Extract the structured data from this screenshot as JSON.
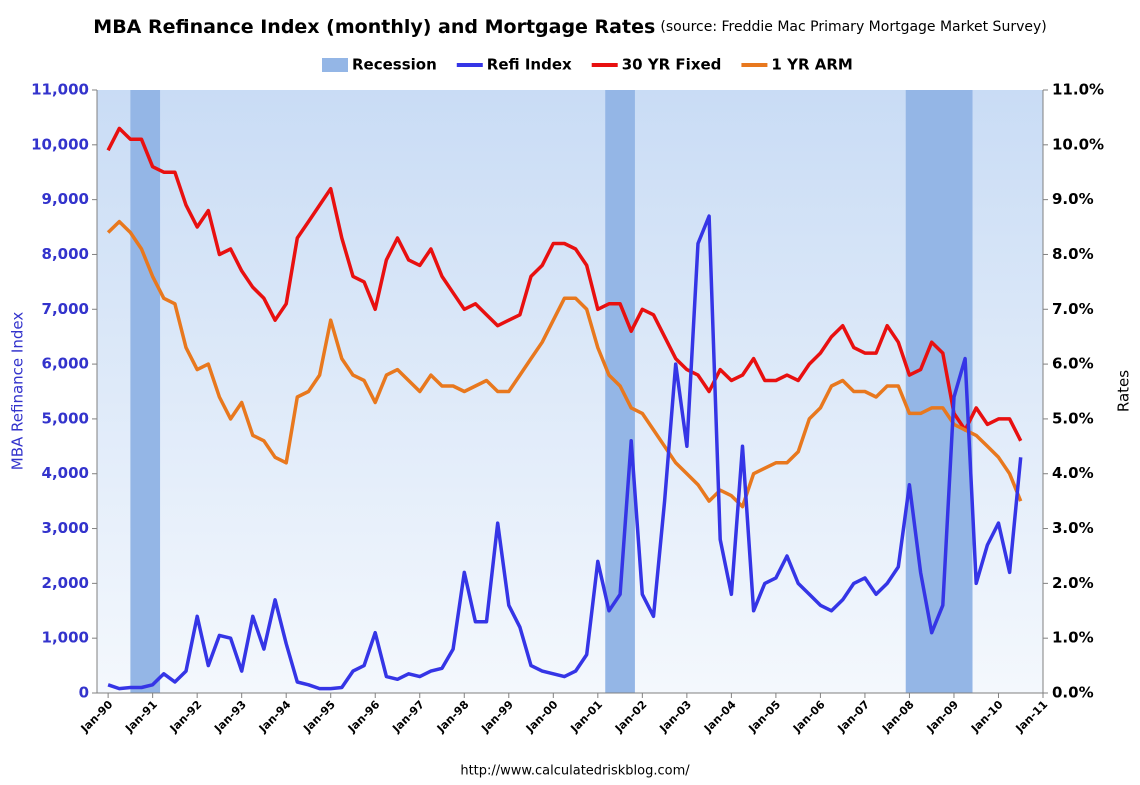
{
  "chart_data": {
    "type": "line",
    "title": "MBA Refinance Index (monthly) and Mortgage Rates",
    "source": "(source: Freddie Mac Primary Mortgage Market Survey)",
    "ylabel": "MBA Refinance Index",
    "y2label": "Rates",
    "footer": "http://www.calculatedriskblog.com/",
    "recessions": {
      "name": "Recession",
      "color": "#94b6e6",
      "periods": [
        [
          "1990-07",
          "1991-03"
        ],
        [
          "2001-03",
          "2001-11"
        ],
        [
          "2007-12",
          "2009-06"
        ]
      ]
    },
    "x": [
      "1990-01",
      "1990-04",
      "1990-07",
      "1990-10",
      "1991-01",
      "1991-04",
      "1991-07",
      "1991-10",
      "1992-01",
      "1992-04",
      "1992-07",
      "1992-10",
      "1993-01",
      "1993-04",
      "1993-07",
      "1993-10",
      "1994-01",
      "1994-04",
      "1994-07",
      "1994-10",
      "1995-01",
      "1995-04",
      "1995-07",
      "1995-10",
      "1996-01",
      "1996-04",
      "1996-07",
      "1996-10",
      "1997-01",
      "1997-04",
      "1997-07",
      "1997-10",
      "1998-01",
      "1998-04",
      "1998-07",
      "1998-10",
      "1999-01",
      "1999-04",
      "1999-07",
      "1999-10",
      "2000-01",
      "2000-04",
      "2000-07",
      "2000-10",
      "2001-01",
      "2001-04",
      "2001-07",
      "2001-10",
      "2002-01",
      "2002-04",
      "2002-07",
      "2002-10",
      "2003-01",
      "2003-04",
      "2003-07",
      "2003-10",
      "2004-01",
      "2004-04",
      "2004-07",
      "2004-10",
      "2005-01",
      "2005-04",
      "2005-07",
      "2005-10",
      "2006-01",
      "2006-04",
      "2006-07",
      "2006-10",
      "2007-01",
      "2007-04",
      "2007-07",
      "2007-10",
      "2008-01",
      "2008-04",
      "2008-07",
      "2008-10",
      "2009-01",
      "2009-04",
      "2009-07",
      "2009-10",
      "2010-01",
      "2010-04",
      "2010-07"
    ],
    "series": [
      {
        "name": "Refi Index",
        "color": "#3535e6",
        "axis": "y",
        "values": [
          150,
          80,
          100,
          100,
          150,
          350,
          200,
          400,
          1400,
          500,
          1050,
          1000,
          400,
          1400,
          800,
          1700,
          900,
          200,
          150,
          80,
          80,
          100,
          400,
          500,
          1100,
          300,
          250,
          350,
          300,
          400,
          450,
          800,
          2200,
          1300,
          1300,
          3100,
          1600,
          1200,
          500,
          400,
          350,
          300,
          400,
          700,
          2400,
          1500,
          1800,
          4600,
          1800,
          1400,
          3500,
          6000,
          4500,
          8200,
          8700,
          2800,
          1800,
          4500,
          1500,
          2000,
          2100,
          2500,
          2000,
          1800,
          1600,
          1500,
          1700,
          2000,
          2100,
          1800,
          2000,
          2300,
          3800,
          2200,
          1100,
          1600,
          5400,
          6100,
          2000,
          2700,
          3100,
          2200,
          4300
        ]
      },
      {
        "name": "30 YR Fixed",
        "color": "#e81010",
        "axis": "y2",
        "values": [
          9.9,
          10.3,
          10.1,
          10.1,
          9.6,
          9.5,
          9.5,
          8.9,
          8.5,
          8.8,
          8.0,
          8.1,
          7.7,
          7.4,
          7.2,
          6.8,
          7.1,
          8.3,
          8.6,
          8.9,
          9.2,
          8.3,
          7.6,
          7.5,
          7.0,
          7.9,
          8.3,
          7.9,
          7.8,
          8.1,
          7.6,
          7.3,
          7.0,
          7.1,
          6.9,
          6.7,
          6.8,
          6.9,
          7.6,
          7.8,
          8.2,
          8.2,
          8.1,
          7.8,
          7.0,
          7.1,
          7.1,
          6.6,
          7.0,
          6.9,
          6.5,
          6.1,
          5.9,
          5.8,
          5.5,
          5.9,
          5.7,
          5.8,
          6.1,
          5.7,
          5.7,
          5.8,
          5.7,
          6.0,
          6.2,
          6.5,
          6.7,
          6.3,
          6.2,
          6.2,
          6.7,
          6.4,
          5.8,
          5.9,
          6.4,
          6.2,
          5.1,
          4.8,
          5.2,
          4.9,
          5.0,
          5.0,
          4.6
        ]
      },
      {
        "name": "1 YR ARM",
        "color": "#e8781e",
        "axis": "y2",
        "values": [
          8.4,
          8.6,
          8.4,
          8.1,
          7.6,
          7.2,
          7.1,
          6.3,
          5.9,
          6.0,
          5.4,
          5.0,
          5.3,
          4.7,
          4.6,
          4.3,
          4.2,
          5.4,
          5.5,
          5.8,
          6.8,
          6.1,
          5.8,
          5.7,
          5.3,
          5.8,
          5.9,
          5.7,
          5.5,
          5.8,
          5.6,
          5.6,
          5.5,
          5.6,
          5.7,
          5.5,
          5.5,
          5.8,
          6.1,
          6.4,
          6.8,
          7.2,
          7.2,
          7.0,
          6.3,
          5.8,
          5.6,
          5.2,
          5.1,
          4.8,
          4.5,
          4.2,
          4.0,
          3.8,
          3.5,
          3.7,
          3.6,
          3.4,
          4.0,
          4.1,
          4.2,
          4.2,
          4.4,
          5.0,
          5.2,
          5.6,
          5.7,
          5.5,
          5.5,
          5.4,
          5.6,
          5.6,
          5.1,
          5.1,
          5.2,
          5.2,
          4.9,
          4.8,
          4.7,
          4.5,
          4.3,
          4.0,
          3.5
        ]
      }
    ],
    "xlim": [
      "1989-10",
      "2011-01"
    ],
    "xticks": [
      {
        "value": "1990-01",
        "label": "Jan-90"
      },
      {
        "value": "1991-01",
        "label": "Jan-91"
      },
      {
        "value": "1992-01",
        "label": "Jan-92"
      },
      {
        "value": "1993-01",
        "label": "Jan-93"
      },
      {
        "value": "1994-01",
        "label": "Jan-94"
      },
      {
        "value": "1995-01",
        "label": "Jan-95"
      },
      {
        "value": "1996-01",
        "label": "Jan-96"
      },
      {
        "value": "1997-01",
        "label": "Jan-97"
      },
      {
        "value": "1998-01",
        "label": "Jan-98"
      },
      {
        "value": "1999-01",
        "label": "Jan-99"
      },
      {
        "value": "2000-01",
        "label": "Jan-00"
      },
      {
        "value": "2001-01",
        "label": "Jan-01"
      },
      {
        "value": "2002-01",
        "label": "Jan-02"
      },
      {
        "value": "2003-01",
        "label": "Jan-03"
      },
      {
        "value": "2004-01",
        "label": "Jan-04"
      },
      {
        "value": "2005-01",
        "label": "Jan-05"
      },
      {
        "value": "2006-01",
        "label": "Jan-06"
      },
      {
        "value": "2007-01",
        "label": "Jan-07"
      },
      {
        "value": "2008-01",
        "label": "Jan-08"
      },
      {
        "value": "2009-01",
        "label": "Jan-09"
      },
      {
        "value": "2010-01",
        "label": "Jan-10"
      },
      {
        "value": "2011-01",
        "label": "Jan-11"
      }
    ],
    "ylim": [
      0,
      11000
    ],
    "yticks": [
      0,
      {
        "value": 1000,
        "label": "1,000"
      },
      {
        "value": 2000,
        "label": "2,000"
      },
      {
        "value": 3000,
        "label": "3,000"
      },
      {
        "value": 4000,
        "label": "4,000"
      },
      {
        "value": 5000,
        "label": "5,000"
      },
      {
        "value": 6000,
        "label": "6,000"
      },
      {
        "value": 7000,
        "label": "7,000"
      },
      {
        "value": 8000,
        "label": "8,000"
      },
      {
        "value": 9000,
        "label": "9,000"
      },
      {
        "value": 10000,
        "label": "10,000"
      },
      {
        "value": 11000,
        "label": "11,000"
      }
    ],
    "y2lim": [
      0,
      11
    ],
    "y2ticks": [
      {
        "value": 0,
        "label": "0.0%"
      },
      {
        "value": 1,
        "label": "1.0%"
      },
      {
        "value": 2,
        "label": "2.0%"
      },
      {
        "value": 3,
        "label": "3.0%"
      },
      {
        "value": 4,
        "label": "4.0%"
      },
      {
        "value": 5,
        "label": "5.0%"
      },
      {
        "value": 6,
        "label": "6.0%"
      },
      {
        "value": 7,
        "label": "7.0%"
      },
      {
        "value": 8,
        "label": "8.0%"
      },
      {
        "value": 9,
        "label": "9.0%"
      },
      {
        "value": 10,
        "label": "10.0%"
      },
      {
        "value": 11,
        "label": "11.0%"
      }
    ],
    "grid": false,
    "legend": "top"
  }
}
